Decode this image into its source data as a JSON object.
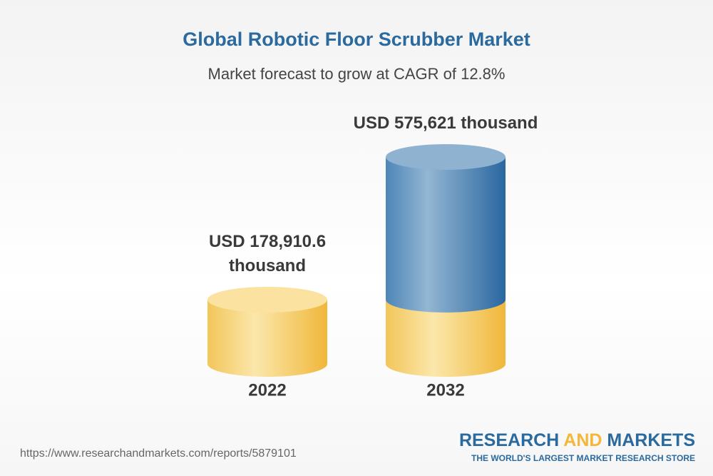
{
  "chart_data": {
    "type": "cylinder",
    "title": "Global Robotic Floor Scrubber Market",
    "subtitle": "Market forecast to grow at CAGR of 12.8%",
    "categories": [
      "2022",
      "2032"
    ],
    "values": [
      178910.6,
      575621
    ],
    "value_labels": [
      "USD 178,910.6 thousand",
      "USD 575,621 thousand"
    ],
    "colors": [
      "#f4bd45",
      "#2f6fa6"
    ]
  },
  "source": "https://www.researchandmarkets.com/reports/5879101",
  "brand": {
    "name": [
      "RESEARCH",
      "AND",
      "MARKETS"
    ],
    "tagline": "THE WORLD'S LARGEST MARKET RESEARCH STORE"
  }
}
